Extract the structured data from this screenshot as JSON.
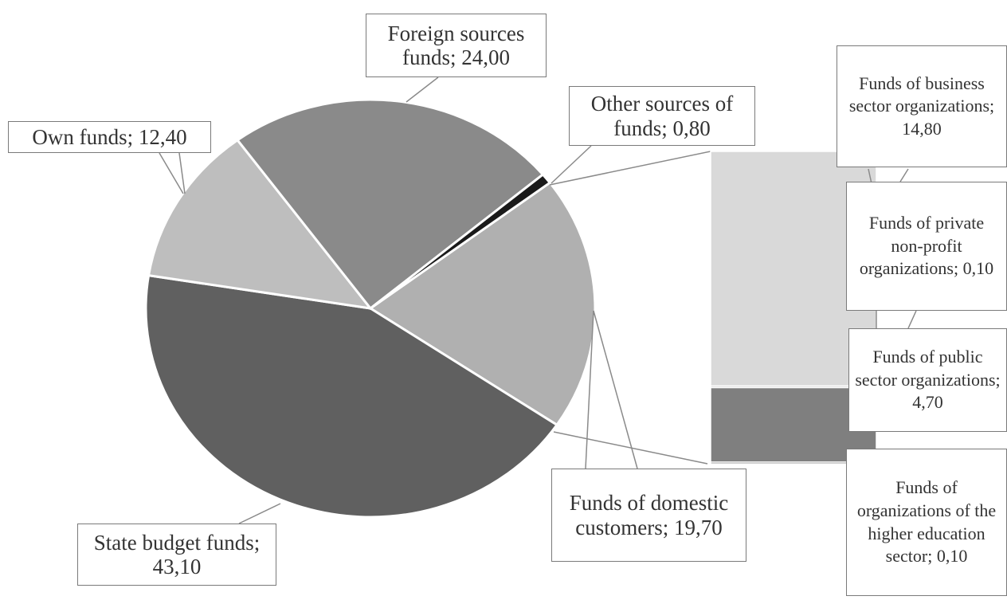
{
  "chart_data": [
    {
      "type": "pie",
      "values": [
        19.7,
        43.1,
        12.4,
        24.0,
        0.8
      ],
      "value_labels": [
        "Funds of domestic customers; 19,70",
        "State budget funds; 43,10",
        "Own funds; 12,40",
        "Foreign sources funds; 24,00",
        "Other sources of funds; 0,80"
      ],
      "colors": [
        "#b0b0b0",
        "#606060",
        "#bebebe",
        "#8a8a8a",
        "#1a1a1a"
      ]
    },
    {
      "type": "bar",
      "values": [
        14.8,
        0.1,
        4.7,
        0.1
      ],
      "value_labels": [
        "Funds of business sector organizations; 14,80",
        "Funds of private non-profit organizations; 0,10",
        "Funds of public sector organizations; 4,70",
        "Funds of organizations of the higher education sector; 0,10"
      ],
      "colors": [
        "#d9d9d9",
        "#a6a6a6",
        "#7f7f7f",
        "#404040"
      ]
    }
  ]
}
